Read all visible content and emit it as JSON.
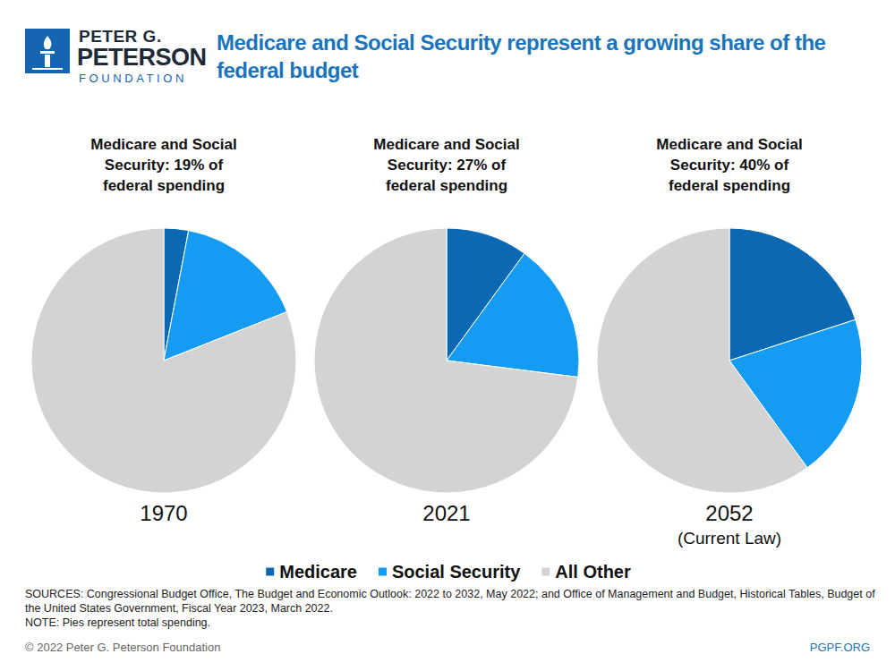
{
  "header": {
    "logo": [
      "PETER G.",
      "PETERSON",
      "FOUNDATION"
    ],
    "title": "Medicare and Social Security represent a growing share of the federal budget"
  },
  "chart_data": [
    {
      "type": "pie",
      "title": "Medicare and Social Security: 19% of federal spending",
      "categories": [
        "Medicare",
        "Social Security",
        "All Other"
      ],
      "values": [
        3,
        16,
        81
      ],
      "colors": [
        "#0b68b3",
        "#169bf2",
        "#d3d3d3"
      ],
      "annotations": [
        "1970"
      ],
      "legend": "bottom"
    },
    {
      "type": "pie",
      "title": "Medicare and Social Security: 27% of federal spending",
      "categories": [
        "Medicare",
        "Social Security",
        "All Other"
      ],
      "values": [
        10,
        17,
        73
      ],
      "colors": [
        "#0b68b3",
        "#169bf2",
        "#d3d3d3"
      ],
      "annotations": [
        "2021"
      ],
      "legend": "bottom"
    },
    {
      "type": "pie",
      "title": "Medicare and Social Security: 40% of federal spending",
      "categories": [
        "Medicare",
        "Social Security",
        "All Other"
      ],
      "values": [
        20,
        20,
        60
      ],
      "colors": [
        "#0b68b3",
        "#169bf2",
        "#d3d3d3"
      ],
      "annotations": [
        "2052",
        "(Current Law)"
      ],
      "legend": "bottom"
    }
  ],
  "footer": {
    "sources": "SOURCES: Congressional Budget Office, The Budget and Economic Outlook: 2022 to 2032, May 2022; and Office of Management and Budget, Historical Tables, Budget of the United States Government, Fiscal Year 2023, March 2022.",
    "note": "NOTE: Pies represent total spending.",
    "copyright": "© 2022 Peter G. Peterson Foundation",
    "url": "PGPF.ORG"
  }
}
